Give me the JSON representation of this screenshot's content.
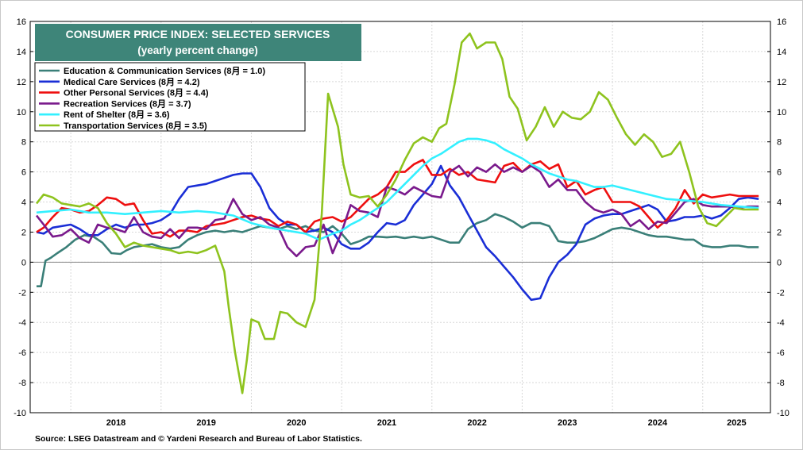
{
  "chart_data": {
    "type": "line",
    "title": "CONSUMER PRICE INDEX: SELECTED SERVICES",
    "subtitle": "(yearly percent change)",
    "source": "Source: LSEG Datastream and © Yardeni Research and Bureau of Labor Statistics.",
    "ylim": [
      -10,
      16
    ],
    "yticks": [
      -10,
      -8,
      -6,
      -4,
      -2,
      0,
      2,
      4,
      6,
      8,
      10,
      12,
      14,
      16
    ],
    "xlim": [
      2017.55,
      2025.75
    ],
    "year_labels": [
      "2018",
      "2019",
      "2020",
      "2021",
      "2022",
      "2023",
      "2024",
      "2025"
    ],
    "legend_position": "top-left",
    "grid": true,
    "series": [
      {
        "name": "Education & Communication Services (8月 = 1.0)",
        "color": "#3a7f78",
        "x": [
          2017.62,
          2017.67,
          2017.72,
          2017.78,
          2017.85,
          2017.95,
          2018.05,
          2018.15,
          2018.25,
          2018.35,
          2018.45,
          2018.55,
          2018.62,
          2018.7,
          2018.8,
          2018.9,
          2019.0,
          2019.1,
          2019.2,
          2019.3,
          2019.4,
          2019.5,
          2019.6,
          2019.7,
          2019.8,
          2019.9,
          2020.0,
          2020.1,
          2020.2,
          2020.3,
          2020.4,
          2020.5,
          2020.6,
          2020.7,
          2020.8,
          2020.9,
          2021.0,
          2021.1,
          2021.2,
          2021.3,
          2021.4,
          2021.5,
          2021.6,
          2021.7,
          2021.8,
          2021.9,
          2022.0,
          2022.1,
          2022.2,
          2022.3,
          2022.4,
          2022.5,
          2022.6,
          2022.7,
          2022.8,
          2022.9,
          2023.0,
          2023.1,
          2023.2,
          2023.3,
          2023.4,
          2023.5,
          2023.6,
          2023.7,
          2023.8,
          2023.9,
          2024.0,
          2024.1,
          2024.2,
          2024.3,
          2024.4,
          2024.5,
          2024.6,
          2024.7,
          2024.8,
          2024.9,
          2025.0,
          2025.1,
          2025.2,
          2025.3,
          2025.4,
          2025.5,
          2025.62
        ],
        "y": [
          -1.6,
          -1.6,
          0.1,
          0.3,
          0.6,
          1.0,
          1.5,
          1.8,
          1.7,
          1.3,
          0.6,
          0.55,
          0.8,
          1.0,
          1.1,
          1.2,
          1.0,
          0.9,
          1.0,
          1.5,
          1.8,
          2.0,
          2.1,
          2.0,
          2.1,
          2.0,
          2.2,
          2.4,
          2.3,
          2.2,
          2.4,
          2.2,
          2.4,
          2.1,
          2.0,
          2.4,
          1.9,
          1.2,
          1.4,
          1.7,
          1.7,
          1.65,
          1.7,
          1.6,
          1.7,
          1.6,
          1.7,
          1.5,
          1.3,
          1.3,
          2.2,
          2.6,
          2.8,
          3.2,
          3.0,
          2.7,
          2.3,
          2.6,
          2.6,
          2.4,
          1.4,
          1.3,
          1.3,
          1.4,
          1.6,
          1.9,
          2.2,
          2.3,
          2.2,
          2.0,
          1.8,
          1.7,
          1.7,
          1.6,
          1.5,
          1.5,
          1.1,
          1.0,
          1.0,
          1.1,
          1.1,
          1.0,
          1.0
        ]
      },
      {
        "name": "Medical Care Services (8月 = 4.2)",
        "color": "#1a2ed6",
        "x": [
          2017.62,
          2017.7,
          2017.8,
          2017.9,
          2018.0,
          2018.1,
          2018.2,
          2018.3,
          2018.4,
          2018.5,
          2018.6,
          2018.7,
          2018.8,
          2018.9,
          2019.0,
          2019.1,
          2019.2,
          2019.3,
          2019.4,
          2019.5,
          2019.6,
          2019.7,
          2019.8,
          2019.9,
          2020.0,
          2020.1,
          2020.2,
          2020.3,
          2020.4,
          2020.5,
          2020.6,
          2020.7,
          2020.8,
          2020.9,
          2021.0,
          2021.1,
          2021.2,
          2021.3,
          2021.4,
          2021.5,
          2021.6,
          2021.7,
          2021.8,
          2021.9,
          2022.0,
          2022.1,
          2022.2,
          2022.3,
          2022.4,
          2022.5,
          2022.6,
          2022.7,
          2022.8,
          2022.9,
          2023.0,
          2023.1,
          2023.2,
          2023.3,
          2023.4,
          2023.5,
          2023.6,
          2023.7,
          2023.8,
          2023.9,
          2024.0,
          2024.1,
          2024.2,
          2024.3,
          2024.4,
          2024.5,
          2024.6,
          2024.7,
          2024.8,
          2024.9,
          2025.0,
          2025.1,
          2025.2,
          2025.3,
          2025.4,
          2025.5,
          2025.62
        ],
        "y": [
          2.0,
          1.9,
          2.3,
          2.4,
          2.5,
          2.2,
          1.8,
          1.8,
          2.2,
          2.5,
          2.3,
          2.5,
          2.5,
          2.6,
          2.8,
          3.2,
          4.2,
          5.0,
          5.1,
          5.2,
          5.4,
          5.6,
          5.8,
          5.9,
          5.9,
          5.0,
          3.6,
          2.9,
          2.5,
          2.5,
          2.0,
          2.1,
          2.3,
          2.0,
          1.2,
          0.9,
          0.9,
          1.3,
          2.0,
          2.6,
          2.5,
          2.8,
          3.8,
          4.5,
          5.2,
          6.4,
          5.1,
          4.3,
          3.2,
          2.1,
          1.0,
          0.4,
          -0.3,
          -1.0,
          -1.8,
          -2.5,
          -2.4,
          -1.0,
          0.0,
          0.5,
          1.2,
          2.5,
          2.9,
          3.1,
          3.2,
          3.2,
          3.4,
          3.6,
          3.8,
          3.5,
          2.7,
          2.8,
          3.0,
          3.0,
          3.1,
          2.9,
          3.1,
          3.6,
          4.2,
          4.3,
          4.2
        ]
      },
      {
        "name": "Other Personal Services (8月 = 4.4)",
        "color": "#ee0f0f",
        "x": [
          2017.62,
          2017.7,
          2017.8,
          2017.9,
          2018.0,
          2018.1,
          2018.2,
          2018.3,
          2018.4,
          2018.5,
          2018.6,
          2018.7,
          2018.8,
          2018.9,
          2019.0,
          2019.1,
          2019.2,
          2019.3,
          2019.4,
          2019.5,
          2019.6,
          2019.7,
          2019.8,
          2019.9,
          2020.0,
          2020.1,
          2020.2,
          2020.3,
          2020.4,
          2020.5,
          2020.6,
          2020.7,
          2020.8,
          2020.9,
          2021.0,
          2021.1,
          2021.2,
          2021.3,
          2021.4,
          2021.5,
          2021.6,
          2021.7,
          2021.8,
          2021.9,
          2022.0,
          2022.1,
          2022.2,
          2022.3,
          2022.4,
          2022.5,
          2022.6,
          2022.7,
          2022.8,
          2022.9,
          2023.0,
          2023.1,
          2023.2,
          2023.3,
          2023.4,
          2023.5,
          2023.6,
          2023.7,
          2023.8,
          2023.9,
          2024.0,
          2024.1,
          2024.2,
          2024.3,
          2024.4,
          2024.5,
          2024.6,
          2024.7,
          2024.8,
          2024.9,
          2025.0,
          2025.1,
          2025.2,
          2025.3,
          2025.4,
          2025.5,
          2025.62
        ],
        "y": [
          2.0,
          2.3,
          3.0,
          3.6,
          3.5,
          3.3,
          3.4,
          3.8,
          4.3,
          4.2,
          3.8,
          3.9,
          2.8,
          1.9,
          2.0,
          1.7,
          2.1,
          2.1,
          2.0,
          2.4,
          2.5,
          2.6,
          2.8,
          3.0,
          3.1,
          2.9,
          2.8,
          2.4,
          2.7,
          2.5,
          2.0,
          2.7,
          2.9,
          3.0,
          2.7,
          3.0,
          3.6,
          4.2,
          4.5,
          5.0,
          6.0,
          6.0,
          6.5,
          6.8,
          5.8,
          5.8,
          6.2,
          5.8,
          6.0,
          5.5,
          5.4,
          5.3,
          6.4,
          6.6,
          6.0,
          6.5,
          6.7,
          6.2,
          6.5,
          5.0,
          5.4,
          4.5,
          4.8,
          5.0,
          4.0,
          4.0,
          4.0,
          3.7,
          3.0,
          2.3,
          2.8,
          3.6,
          4.8,
          3.9,
          4.5,
          4.3,
          4.4,
          4.5,
          4.4,
          4.4,
          4.4
        ]
      },
      {
        "name": "Recreation Services (8月 = 3.7)",
        "color": "#7a1a8c",
        "x": [
          2017.62,
          2017.7,
          2017.8,
          2017.9,
          2018.0,
          2018.1,
          2018.2,
          2018.3,
          2018.4,
          2018.5,
          2018.6,
          2018.7,
          2018.8,
          2018.9,
          2019.0,
          2019.1,
          2019.2,
          2019.3,
          2019.4,
          2019.5,
          2019.6,
          2019.7,
          2019.8,
          2019.9,
          2020.0,
          2020.1,
          2020.2,
          2020.3,
          2020.4,
          2020.5,
          2020.6,
          2020.7,
          2020.8,
          2020.9,
          2021.0,
          2021.1,
          2021.2,
          2021.3,
          2021.4,
          2021.5,
          2021.6,
          2021.7,
          2021.8,
          2021.9,
          2022.0,
          2022.1,
          2022.2,
          2022.3,
          2022.4,
          2022.5,
          2022.6,
          2022.7,
          2022.8,
          2022.9,
          2023.0,
          2023.1,
          2023.2,
          2023.3,
          2023.4,
          2023.5,
          2023.6,
          2023.7,
          2023.8,
          2023.9,
          2024.0,
          2024.1,
          2024.2,
          2024.3,
          2024.4,
          2024.5,
          2024.6,
          2024.7,
          2024.8,
          2024.9,
          2025.0,
          2025.1,
          2025.2,
          2025.3,
          2025.4,
          2025.5,
          2025.62
        ],
        "y": [
          3.1,
          2.5,
          1.7,
          1.8,
          2.2,
          1.6,
          1.3,
          2.5,
          2.3,
          2.2,
          2.0,
          3.0,
          2.0,
          1.7,
          1.6,
          2.2,
          1.6,
          2.3,
          2.3,
          2.2,
          2.8,
          2.9,
          4.2,
          3.2,
          2.8,
          3.0,
          2.5,
          2.3,
          1.0,
          0.4,
          1.0,
          1.1,
          2.5,
          0.6,
          2.0,
          3.8,
          3.4,
          3.3,
          3.0,
          5.0,
          4.8,
          4.5,
          5.0,
          4.7,
          4.4,
          4.3,
          6.0,
          6.4,
          5.7,
          6.3,
          6.0,
          6.5,
          6.0,
          6.3,
          6.0,
          6.4,
          6.0,
          5.0,
          5.5,
          4.8,
          4.8,
          4.0,
          3.5,
          3.3,
          3.5,
          3.2,
          2.4,
          2.8,
          2.2,
          2.7,
          2.6,
          3.3,
          4.0,
          4.2,
          3.8,
          3.7,
          3.7,
          3.7,
          3.6,
          3.7,
          3.7
        ]
      },
      {
        "name": "Rent of Shelter (8月 = 3.6)",
        "color": "#33f0ff",
        "x": [
          2017.62,
          2017.8,
          2018.0,
          2018.2,
          2018.4,
          2018.6,
          2018.8,
          2019.0,
          2019.2,
          2019.4,
          2019.6,
          2019.8,
          2020.0,
          2020.2,
          2020.4,
          2020.6,
          2020.75,
          2020.9,
          2021.0,
          2021.1,
          2021.2,
          2021.3,
          2021.4,
          2021.5,
          2021.6,
          2021.7,
          2021.8,
          2021.9,
          2022.0,
          2022.1,
          2022.2,
          2022.3,
          2022.4,
          2022.5,
          2022.6,
          2022.7,
          2022.8,
          2022.9,
          2023.0,
          2023.1,
          2023.2,
          2023.3,
          2023.4,
          2023.5,
          2023.6,
          2023.7,
          2023.8,
          2023.9,
          2024.0,
          2024.2,
          2024.4,
          2024.6,
          2024.8,
          2025.0,
          2025.2,
          2025.4,
          2025.62
        ],
        "y": [
          3.3,
          3.4,
          3.5,
          3.3,
          3.3,
          3.2,
          3.3,
          3.4,
          3.3,
          3.4,
          3.3,
          3.1,
          2.6,
          2.3,
          2.1,
          1.9,
          1.5,
          1.9,
          2.1,
          2.5,
          2.8,
          3.2,
          3.6,
          4.0,
          4.6,
          5.2,
          5.8,
          6.4,
          6.9,
          7.2,
          7.6,
          8.0,
          8.2,
          8.2,
          8.1,
          7.9,
          7.5,
          7.2,
          6.9,
          6.5,
          6.2,
          5.9,
          5.7,
          5.5,
          5.4,
          5.2,
          5.0,
          5.0,
          5.1,
          4.8,
          4.5,
          4.2,
          4.1,
          4.0,
          3.8,
          3.7,
          3.6
        ]
      },
      {
        "name": "Transportation Services (8月 = 3.5)",
        "color": "#8ec31e",
        "x": [
          2017.62,
          2017.7,
          2017.8,
          2017.9,
          2018.0,
          2018.1,
          2018.2,
          2018.3,
          2018.4,
          2018.5,
          2018.6,
          2018.7,
          2018.8,
          2018.9,
          2019.0,
          2019.1,
          2019.2,
          2019.3,
          2019.4,
          2019.5,
          2019.6,
          2019.7,
          2019.75,
          2019.82,
          2019.9,
          2019.95,
          2020.0,
          2020.08,
          2020.15,
          2020.25,
          2020.32,
          2020.4,
          2020.5,
          2020.6,
          2020.7,
          2020.78,
          2020.85,
          2020.9,
          2020.96,
          2021.02,
          2021.1,
          2021.2,
          2021.3,
          2021.4,
          2021.5,
          2021.6,
          2021.7,
          2021.8,
          2021.9,
          2022.0,
          2022.08,
          2022.16,
          2022.25,
          2022.33,
          2022.42,
          2022.5,
          2022.6,
          2022.7,
          2022.78,
          2022.86,
          2022.95,
          2023.05,
          2023.15,
          2023.25,
          2023.35,
          2023.45,
          2023.55,
          2023.65,
          2023.75,
          2023.85,
          2023.95,
          2024.05,
          2024.15,
          2024.25,
          2024.35,
          2024.45,
          2024.55,
          2024.65,
          2024.75,
          2024.85,
          2024.95,
          2025.05,
          2025.15,
          2025.25,
          2025.35,
          2025.45,
          2025.62
        ],
        "y": [
          3.9,
          4.5,
          4.3,
          3.9,
          3.8,
          3.7,
          3.9,
          3.6,
          2.6,
          1.9,
          1.0,
          1.3,
          1.1,
          1.0,
          0.9,
          0.8,
          0.6,
          0.7,
          0.6,
          0.8,
          1.1,
          -0.6,
          -3.0,
          -6.0,
          -8.7,
          -6.5,
          -3.8,
          -4.0,
          -5.1,
          -5.1,
          -3.3,
          -3.4,
          -4.0,
          -4.3,
          -2.5,
          3.2,
          11.2,
          10.2,
          9.0,
          6.5,
          4.5,
          4.3,
          4.4,
          3.7,
          4.5,
          5.5,
          6.8,
          7.9,
          8.3,
          8.0,
          8.9,
          9.2,
          11.8,
          14.6,
          15.2,
          14.2,
          14.6,
          14.6,
          13.5,
          11.0,
          10.2,
          8.1,
          9.0,
          10.3,
          9.0,
          10.0,
          9.6,
          9.5,
          10.0,
          11.3,
          10.8,
          9.6,
          8.5,
          7.8,
          8.5,
          8.0,
          7.0,
          7.2,
          8.0,
          6.0,
          3.7,
          2.6,
          2.4,
          3.0,
          3.6,
          3.5,
          3.5
        ]
      }
    ]
  }
}
